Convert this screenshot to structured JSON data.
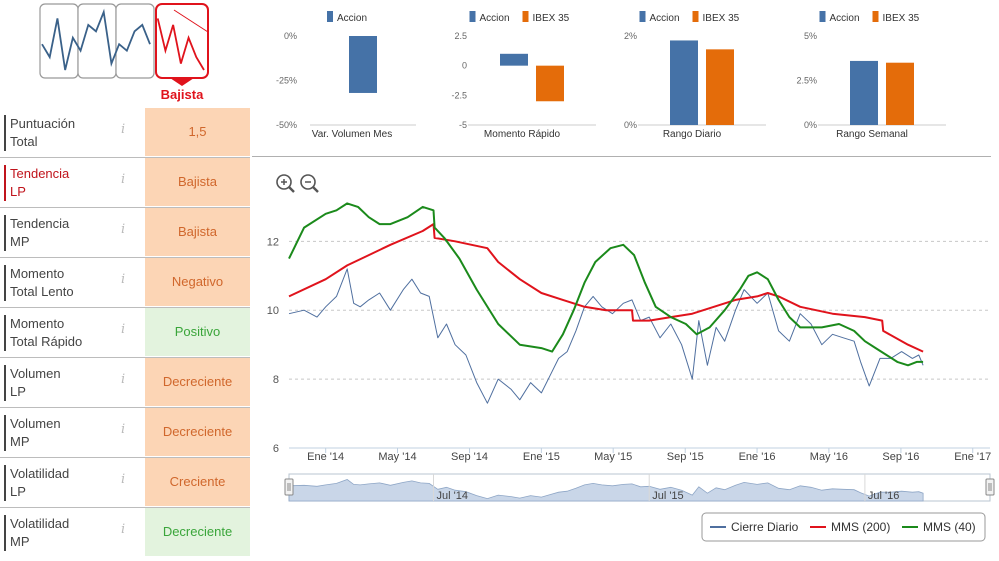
{
  "trend": {
    "label": "Bajista",
    "color": "#e0131c",
    "sparkline_values": [
      5,
      3,
      9,
      1,
      6,
      4,
      8,
      7,
      10,
      2,
      5,
      4,
      7,
      8,
      5,
      9,
      4,
      8,
      2,
      6,
      3,
      1
    ]
  },
  "indicators": [
    {
      "label_line1": "Puntuación",
      "label_line2": "Total",
      "value": "1,5",
      "bg": "#fcd5b5",
      "color": "#d0672c",
      "active": false
    },
    {
      "label_line1": "Tendencia",
      "label_line2": "LP",
      "value": "Bajista",
      "bg": "#fcd5b5",
      "color": "#d0672c",
      "active": true
    },
    {
      "label_line1": "Tendencia",
      "label_line2": "MP",
      "value": "Bajista",
      "bg": "#fcd5b5",
      "color": "#d0672c",
      "active": false
    },
    {
      "label_line1": "Momento",
      "label_line2": "Total Lento",
      "value": "Negativo",
      "bg": "#fcd5b5",
      "color": "#d0672c",
      "active": false
    },
    {
      "label_line1": "Momento",
      "label_line2": "Total Rápido",
      "value": "Positivo",
      "bg": "#e3f3de",
      "color": "#3aa53a",
      "active": false
    },
    {
      "label_line1": "Volumen",
      "label_line2": "LP",
      "value": "Decreciente",
      "bg": "#fcd5b5",
      "color": "#d0672c",
      "active": false
    },
    {
      "label_line1": "Volumen",
      "label_line2": "MP",
      "value": "Decreciente",
      "bg": "#fcd5b5",
      "color": "#d0672c",
      "active": false
    },
    {
      "label_line1": "Volatilidad",
      "label_line2": "LP",
      "value": "Creciente",
      "bg": "#fcd5b5",
      "color": "#d0672c",
      "active": false
    },
    {
      "label_line1": "Volatilidad",
      "label_line2": "MP",
      "value": "Decreciente",
      "bg": "#e3f3de",
      "color": "#3aa53a",
      "active": false
    }
  ],
  "info_glyph": "i",
  "colors": {
    "accion": "#4572a7",
    "ibex": "#e46c0a",
    "close": "#4f6f9f",
    "mms200": "#e0131c",
    "mms40": "#1b8a1b"
  },
  "chart_data": [
    {
      "type": "bar",
      "title": "Var. Volumen Mes",
      "series": [
        {
          "name": "Accion",
          "values": [
            -32
          ]
        }
      ],
      "yticks": [
        "0%",
        "-25%",
        "-50%"
      ],
      "tick_values": [
        0,
        -25,
        -50
      ],
      "ylim": [
        -50,
        0
      ]
    },
    {
      "type": "bar",
      "title": "Momento Rápido",
      "series": [
        {
          "name": "Accion",
          "values": [
            1.0
          ]
        },
        {
          "name": "IBEX 35",
          "values": [
            -3.0
          ]
        }
      ],
      "yticks": [
        "2.5",
        "0",
        "-2.5",
        "-5"
      ],
      "tick_values": [
        2.5,
        0,
        -2.5,
        -5
      ],
      "ylim": [
        -5,
        2.5
      ]
    },
    {
      "type": "bar",
      "title": "Rango Diario",
      "series": [
        {
          "name": "Accion",
          "values": [
            1.9
          ]
        },
        {
          "name": "IBEX 35",
          "values": [
            1.7
          ]
        }
      ],
      "yticks": [
        "2%",
        "0%"
      ],
      "tick_values": [
        2,
        0
      ],
      "ylim": [
        0,
        2
      ]
    },
    {
      "type": "bar",
      "title": "Rango Semanal",
      "series": [
        {
          "name": "Accion",
          "values": [
            3.6
          ]
        },
        {
          "name": "IBEX 35",
          "values": [
            3.5
          ]
        }
      ],
      "yticks": [
        "5%",
        "2.5%",
        "0%"
      ],
      "tick_values": [
        5,
        2.5,
        0
      ],
      "ylim": [
        0,
        5
      ]
    },
    {
      "type": "line",
      "xlim": [
        2013.83,
        2017.08
      ],
      "ylim": [
        6,
        13.2
      ],
      "yticks": [
        6,
        8,
        10,
        12
      ],
      "xticks": [
        {
          "label": "Ene '14",
          "x": 2014.0
        },
        {
          "label": "May '14",
          "x": 2014.333
        },
        {
          "label": "Sep '14",
          "x": 2014.667
        },
        {
          "label": "Ene '15",
          "x": 2015.0
        },
        {
          "label": "May '15",
          "x": 2015.333
        },
        {
          "label": "Sep '15",
          "x": 2015.667
        },
        {
          "label": "Ene '16",
          "x": 2016.0
        },
        {
          "label": "May '16",
          "x": 2016.333
        },
        {
          "label": "Sep '16",
          "x": 2016.667
        },
        {
          "label": "Ene '17",
          "x": 2017.0
        }
      ],
      "series": [
        {
          "name": "Cierre Diario",
          "x": [
            2013.83,
            2013.9,
            2013.96,
            2014.0,
            2014.05,
            2014.1,
            2014.13,
            2014.16,
            2014.2,
            2014.25,
            2014.3,
            2014.36,
            2014.4,
            2014.44,
            2014.48,
            2014.52,
            2014.56,
            2014.6,
            2014.65,
            2014.7,
            2014.75,
            2014.8,
            2014.86,
            2014.9,
            2014.95,
            2015.0,
            2015.04,
            2015.08,
            2015.12,
            2015.16,
            2015.2,
            2015.24,
            2015.28,
            2015.33,
            2015.38,
            2015.42,
            2015.46,
            2015.5,
            2015.55,
            2015.6,
            2015.65,
            2015.7,
            2015.73,
            2015.77,
            2015.81,
            2015.85,
            2015.9,
            2015.94,
            2016.0,
            2016.05,
            2016.1,
            2016.15,
            2016.2,
            2016.25,
            2016.3,
            2016.35,
            2016.4,
            2016.45,
            2016.48,
            2016.52,
            2016.57,
            2016.62,
            2016.67,
            2016.72,
            2016.75,
            2016.77
          ],
          "values": [
            9.9,
            10.0,
            9.8,
            10.1,
            10.4,
            11.2,
            10.2,
            10.1,
            10.3,
            10.5,
            10.0,
            10.6,
            10.9,
            10.5,
            10.4,
            9.2,
            9.6,
            9.0,
            8.7,
            7.9,
            7.3,
            8.0,
            7.7,
            7.4,
            7.9,
            7.6,
            8.1,
            8.6,
            8.8,
            9.4,
            10.1,
            10.4,
            10.1,
            9.9,
            10.2,
            10.3,
            9.7,
            9.8,
            9.2,
            9.6,
            9.0,
            8.0,
            9.7,
            8.4,
            9.5,
            9.1,
            10.0,
            10.6,
            10.2,
            10.5,
            9.4,
            9.1,
            9.9,
            9.6,
            9.0,
            9.3,
            9.2,
            9.1,
            8.5,
            7.8,
            8.6,
            8.6,
            8.8,
            8.6,
            8.7,
            8.4
          ]
        },
        {
          "name": "MMS (200)",
          "x": [
            2013.83,
            2014.0,
            2014.1,
            2014.2,
            2014.3,
            2014.45,
            2014.5,
            2014.505,
            2014.6,
            2014.75,
            2014.8,
            2014.9,
            2015.0,
            2015.1,
            2015.2,
            2015.3,
            2015.4,
            2015.42,
            2015.425,
            2015.5,
            2015.6,
            2015.7,
            2015.8,
            2015.9,
            2016.0,
            2016.05,
            2016.1,
            2016.2,
            2016.35,
            2016.5,
            2016.58,
            2016.585,
            2016.7,
            2016.77
          ],
          "values": [
            10.4,
            10.9,
            11.3,
            11.6,
            11.9,
            12.3,
            12.5,
            12.1,
            12.0,
            11.8,
            11.4,
            10.9,
            10.5,
            10.3,
            10.1,
            10.0,
            10.0,
            10.0,
            9.7,
            9.7,
            9.8,
            9.9,
            10.1,
            10.3,
            10.4,
            10.5,
            10.4,
            10.1,
            9.9,
            9.8,
            9.7,
            9.4,
            9.0,
            8.8
          ]
        },
        {
          "name": "MMS (40)",
          "x": [
            2013.83,
            2013.9,
            2014.0,
            2014.05,
            2014.1,
            2014.15,
            2014.2,
            2014.25,
            2014.3,
            2014.38,
            2014.45,
            2014.5,
            2014.505,
            2014.55,
            2014.62,
            2014.7,
            2014.8,
            2014.9,
            2015.0,
            2015.05,
            2015.1,
            2015.15,
            2015.2,
            2015.25,
            2015.32,
            2015.38,
            2015.43,
            2015.48,
            2015.53,
            2015.6,
            2015.67,
            2015.72,
            2015.78,
            2015.85,
            2015.92,
            2015.96,
            2016.0,
            2016.05,
            2016.1,
            2016.15,
            2016.2,
            2016.3,
            2016.38,
            2016.45,
            2016.5,
            2016.55,
            2016.6,
            2016.65,
            2016.7,
            2016.74,
            2016.77
          ],
          "values": [
            11.5,
            12.4,
            12.8,
            12.9,
            13.1,
            13.0,
            12.7,
            12.5,
            12.5,
            12.7,
            13.0,
            12.9,
            12.4,
            12.1,
            11.5,
            10.6,
            9.6,
            9.0,
            8.9,
            8.8,
            9.3,
            10.0,
            10.8,
            11.4,
            11.8,
            11.9,
            11.6,
            10.8,
            10.1,
            9.8,
            9.6,
            9.3,
            9.5,
            10.0,
            10.6,
            11.0,
            11.1,
            10.9,
            10.3,
            9.8,
            9.5,
            9.5,
            9.6,
            9.4,
            9.1,
            8.9,
            8.7,
            8.5,
            8.4,
            8.5,
            8.5
          ]
        }
      ]
    }
  ],
  "navigator": {
    "labels": [
      {
        "label": "Jul '14",
        "x": 2014.5
      },
      {
        "label": "Jul '15",
        "x": 2015.5
      },
      {
        "label": "Jul '16",
        "x": 2016.5
      }
    ]
  }
}
